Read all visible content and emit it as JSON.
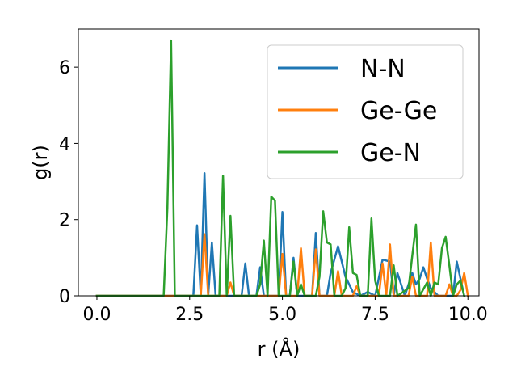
{
  "chart_data": {
    "type": "line",
    "xlabel": "r (Å)",
    "ylabel": "g(r)",
    "xlim": [
      -0.5,
      10.3
    ],
    "ylim": [
      0,
      7.0
    ],
    "xticks": [
      0.0,
      2.5,
      5.0,
      7.5,
      10.0
    ],
    "xtick_labels": [
      "0.0",
      "2.5",
      "5.0",
      "7.5",
      "10.0"
    ],
    "yticks": [
      0,
      2,
      4,
      6
    ],
    "ytick_labels": [
      "0",
      "2",
      "4",
      "6"
    ],
    "grid": false,
    "legend_position": "top-right",
    "series": [
      {
        "name": "N-N",
        "color": "#1f77b4",
        "points": [
          [
            0.0,
            0
          ],
          [
            2.6,
            0
          ],
          [
            2.7,
            1.85
          ],
          [
            2.8,
            0
          ],
          [
            2.9,
            3.22
          ],
          [
            3.0,
            0
          ],
          [
            3.1,
            1.4
          ],
          [
            3.2,
            0
          ],
          [
            3.9,
            0
          ],
          [
            4.0,
            0.85
          ],
          [
            4.1,
            0
          ],
          [
            4.3,
            0
          ],
          [
            4.4,
            0.75
          ],
          [
            4.5,
            0
          ],
          [
            4.9,
            0
          ],
          [
            5.0,
            2.2
          ],
          [
            5.1,
            0
          ],
          [
            5.2,
            0
          ],
          [
            5.3,
            1.0
          ],
          [
            5.4,
            0
          ],
          [
            5.8,
            0
          ],
          [
            5.9,
            1.65
          ],
          [
            6.0,
            0
          ],
          [
            6.2,
            0
          ],
          [
            6.3,
            0.6
          ],
          [
            6.5,
            1.3
          ],
          [
            6.7,
            0.5
          ],
          [
            6.9,
            0.1
          ],
          [
            7.1,
            0
          ],
          [
            7.3,
            0.1
          ],
          [
            7.5,
            0
          ],
          [
            7.7,
            0.95
          ],
          [
            7.9,
            0.9
          ],
          [
            8.0,
            0
          ],
          [
            8.1,
            0.6
          ],
          [
            8.3,
            0
          ],
          [
            8.5,
            0.6
          ],
          [
            8.6,
            0.3
          ],
          [
            8.7,
            0.45
          ],
          [
            8.8,
            0.75
          ],
          [
            8.9,
            0.45
          ],
          [
            9.0,
            0.2
          ],
          [
            9.2,
            0
          ],
          [
            9.6,
            0
          ],
          [
            9.7,
            0.9
          ],
          [
            9.8,
            0.45
          ],
          [
            9.9,
            0
          ]
        ]
      },
      {
        "name": "Ge-Ge",
        "color": "#ff7f0e",
        "points": [
          [
            0.0,
            0
          ],
          [
            2.8,
            0
          ],
          [
            2.9,
            1.62
          ],
          [
            3.0,
            0
          ],
          [
            3.5,
            0
          ],
          [
            3.6,
            0.35
          ],
          [
            3.7,
            0
          ],
          [
            4.9,
            0
          ],
          [
            5.0,
            1.1
          ],
          [
            5.1,
            0
          ],
          [
            5.4,
            0
          ],
          [
            5.5,
            1.25
          ],
          [
            5.6,
            0
          ],
          [
            5.8,
            0
          ],
          [
            5.9,
            1.22
          ],
          [
            6.0,
            0
          ],
          [
            6.4,
            0
          ],
          [
            6.5,
            0.65
          ],
          [
            6.6,
            0
          ],
          [
            6.9,
            0
          ],
          [
            7.0,
            0.25
          ],
          [
            7.1,
            0
          ],
          [
            7.6,
            0
          ],
          [
            7.7,
            0.85
          ],
          [
            7.8,
            0
          ],
          [
            7.9,
            1.35
          ],
          [
            8.0,
            0
          ],
          [
            8.4,
            0
          ],
          [
            8.5,
            0.5
          ],
          [
            8.6,
            0
          ],
          [
            8.9,
            0
          ],
          [
            9.0,
            1.4
          ],
          [
            9.1,
            0
          ],
          [
            9.4,
            0
          ],
          [
            9.5,
            0.3
          ],
          [
            9.6,
            0
          ],
          [
            9.7,
            0
          ],
          [
            9.8,
            0.15
          ],
          [
            9.9,
            0.6
          ],
          [
            10.0,
            0
          ]
        ]
      },
      {
        "name": "Ge-N",
        "color": "#2ca02c",
        "points": [
          [
            0.0,
            0
          ],
          [
            1.8,
            0
          ],
          [
            1.9,
            2.3
          ],
          [
            2.0,
            6.7
          ],
          [
            2.1,
            0
          ],
          [
            3.3,
            0
          ],
          [
            3.4,
            3.15
          ],
          [
            3.5,
            0
          ],
          [
            3.6,
            2.1
          ],
          [
            3.7,
            0
          ],
          [
            4.3,
            0
          ],
          [
            4.4,
            0.3
          ],
          [
            4.5,
            1.45
          ],
          [
            4.6,
            0
          ],
          [
            4.7,
            2.6
          ],
          [
            4.8,
            2.5
          ],
          [
            4.9,
            0
          ],
          [
            5.2,
            0
          ],
          [
            5.3,
            0.9
          ],
          [
            5.4,
            0
          ],
          [
            5.5,
            0.3
          ],
          [
            5.6,
            0
          ],
          [
            5.9,
            0
          ],
          [
            6.0,
            0.5
          ],
          [
            6.1,
            2.22
          ],
          [
            6.2,
            1.4
          ],
          [
            6.3,
            1.35
          ],
          [
            6.4,
            0
          ],
          [
            6.6,
            0
          ],
          [
            6.7,
            0.2
          ],
          [
            6.8,
            1.8
          ],
          [
            6.9,
            0.6
          ],
          [
            7.0,
            0.55
          ],
          [
            7.1,
            0
          ],
          [
            7.3,
            0
          ],
          [
            7.4,
            2.03
          ],
          [
            7.5,
            0.4
          ],
          [
            7.6,
            0
          ],
          [
            7.9,
            0
          ],
          [
            8.0,
            0.8
          ],
          [
            8.1,
            0
          ],
          [
            8.4,
            0.2
          ],
          [
            8.5,
            1.05
          ],
          [
            8.6,
            1.87
          ],
          [
            8.7,
            0
          ],
          [
            8.9,
            0.35
          ],
          [
            9.0,
            0
          ],
          [
            9.1,
            0.35
          ],
          [
            9.2,
            0.3
          ],
          [
            9.3,
            1.25
          ],
          [
            9.4,
            1.55
          ],
          [
            9.5,
            0.8
          ],
          [
            9.6,
            0
          ],
          [
            9.7,
            0.3
          ],
          [
            9.8,
            0.4
          ],
          [
            9.9,
            0
          ]
        ]
      }
    ]
  }
}
